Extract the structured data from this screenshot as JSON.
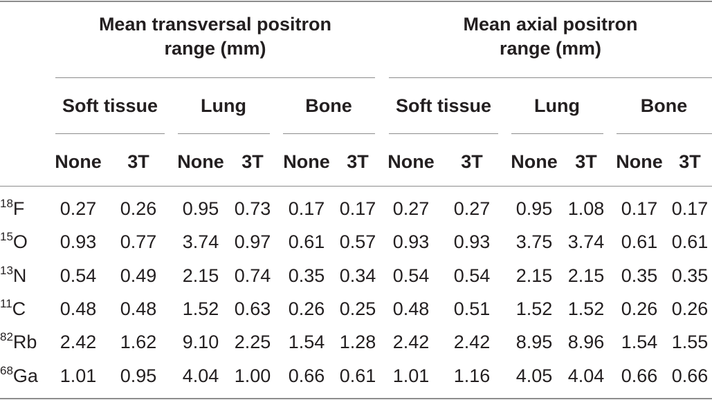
{
  "headers": {
    "group1": "Mean transversal positron range (mm)",
    "group1_lines": [
      "Mean transversal positron",
      "range (mm)"
    ],
    "group2": "Mean axial positron range (mm)",
    "group2_lines": [
      "Mean axial positron",
      "range (mm)"
    ]
  },
  "tissues": [
    "Soft tissue",
    "Lung",
    "Bone",
    "Soft tissue",
    "Lung",
    "Bone"
  ],
  "conditions": [
    "None",
    "3T",
    "None",
    "3T",
    "None",
    "3T",
    "None",
    "3T",
    "None",
    "3T",
    "None",
    "3T"
  ],
  "rows": [
    {
      "mass": "18",
      "element": "F",
      "values": [
        "0.27",
        "0.26",
        "0.95",
        "0.73",
        "0.17",
        "0.17",
        "0.27",
        "0.27",
        "0.95",
        "1.08",
        "0.17",
        "0.17"
      ]
    },
    {
      "mass": "15",
      "element": "O",
      "values": [
        "0.93",
        "0.77",
        "3.74",
        "0.97",
        "0.61",
        "0.57",
        "0.93",
        "0.93",
        "3.75",
        "3.74",
        "0.61",
        "0.61"
      ]
    },
    {
      "mass": "13",
      "element": "N",
      "values": [
        "0.54",
        "0.49",
        "2.15",
        "0.74",
        "0.35",
        "0.34",
        "0.54",
        "0.54",
        "2.15",
        "2.15",
        "0.35",
        "0.35"
      ]
    },
    {
      "mass": "11",
      "element": "C",
      "values": [
        "0.48",
        "0.48",
        "1.52",
        "0.63",
        "0.26",
        "0.25",
        "0.48",
        "0.51",
        "1.52",
        "1.52",
        "0.26",
        "0.26"
      ]
    },
    {
      "mass": "82",
      "element": "Rb",
      "values": [
        "2.42",
        "1.62",
        "9.10",
        "2.25",
        "1.54",
        "1.28",
        "2.42",
        "2.42",
        "8.95",
        "8.96",
        "1.54",
        "1.55"
      ]
    },
    {
      "mass": "68",
      "element": "Ga",
      "values": [
        "1.01",
        "0.95",
        "4.04",
        "1.00",
        "0.66",
        "0.61",
        "1.01",
        "1.16",
        "4.05",
        "4.04",
        "0.66",
        "0.66"
      ]
    }
  ]
}
